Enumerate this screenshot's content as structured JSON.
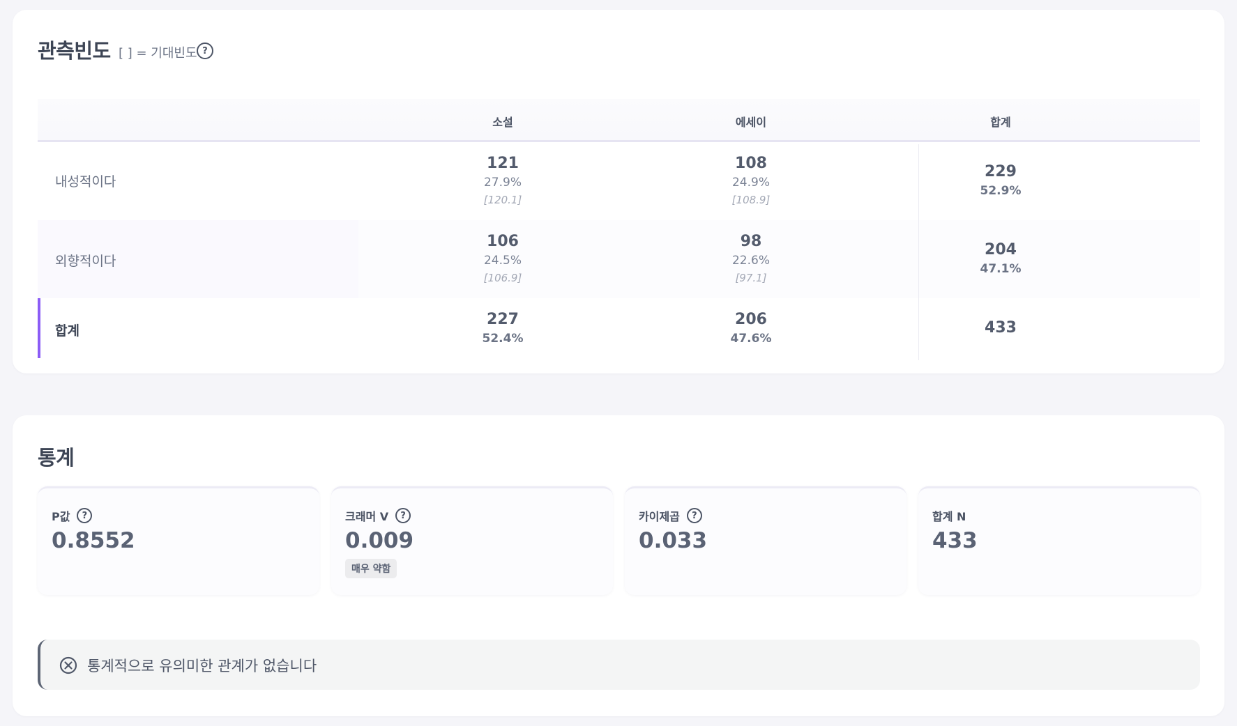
{
  "freq_card": {
    "title": "관측빈도",
    "legend_note": "[ ] = 기대빈도",
    "help_glyph": "?",
    "columns": [
      "소설",
      "에세이",
      "합계"
    ],
    "rows": [
      {
        "label": "내성적이다",
        "cells": [
          {
            "count": "121",
            "pct": "27.9%",
            "expected": "[120.1]"
          },
          {
            "count": "108",
            "pct": "24.9%",
            "expected": "[108.9]"
          }
        ],
        "total": {
          "count": "229",
          "pct": "52.9%"
        }
      },
      {
        "label": "외향적이다",
        "cells": [
          {
            "count": "106",
            "pct": "24.5%",
            "expected": "[106.9]"
          },
          {
            "count": "98",
            "pct": "22.6%",
            "expected": "[97.1]"
          }
        ],
        "total": {
          "count": "204",
          "pct": "47.1%"
        }
      }
    ],
    "totals_row": {
      "label": "합계",
      "cells": [
        {
          "count": "227",
          "pct": "52.4%"
        },
        {
          "count": "206",
          "pct": "47.6%"
        }
      ],
      "grand_total": "433"
    }
  },
  "stats_card": {
    "title": "통계",
    "items": [
      {
        "label": "P값",
        "value": "0.8552"
      },
      {
        "label": "크래머 V",
        "value": "0.009",
        "badge": "매우 약함"
      },
      {
        "label": "카이제곱",
        "value": "0.033"
      },
      {
        "label": "합계 N",
        "value": "433"
      }
    ],
    "help_glyph": "?",
    "result_text": "통계적으로 유의미한 관계가 없습니다"
  },
  "colors": {
    "accent": "#8b5cf6",
    "page_bg": "#f5f5f9",
    "card_bg": "#ffffff"
  },
  "icons": {
    "help": "question-circle-icon",
    "result": "x-circle-icon"
  }
}
